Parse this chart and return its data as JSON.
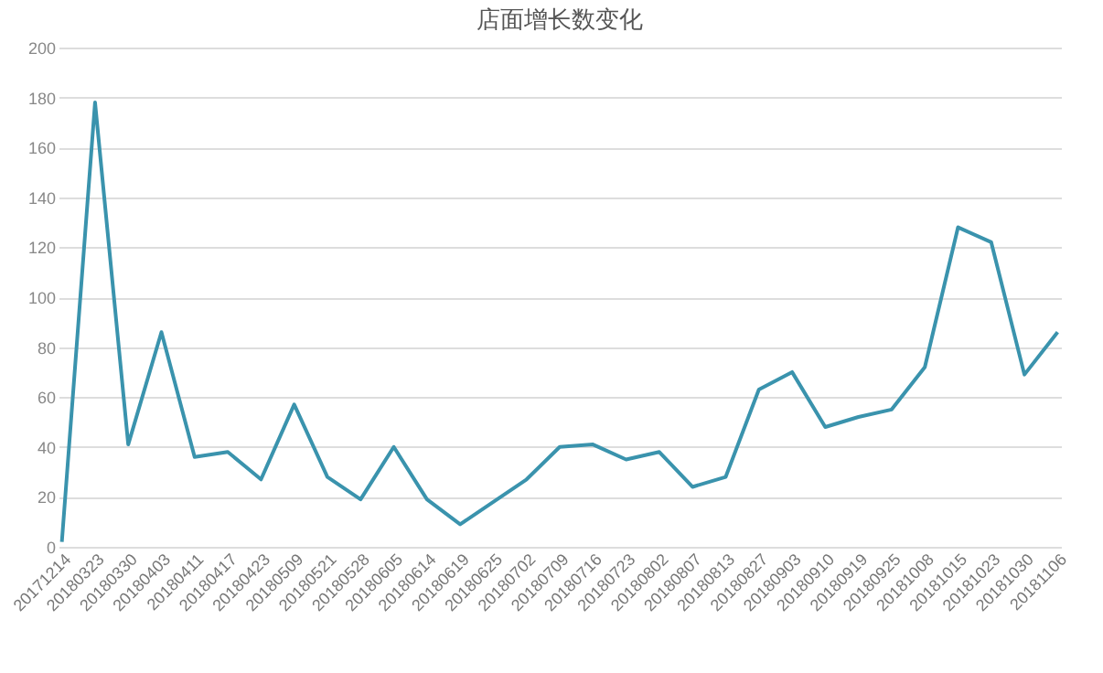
{
  "chart_data": {
    "type": "line",
    "title": "店面增长数变化",
    "categories": [
      "20171214",
      "20180323",
      "20180330",
      "20180403",
      "20180411",
      "20180417",
      "20180423",
      "20180509",
      "20180521",
      "20180528",
      "20180605",
      "20180614",
      "20180619",
      "20180625",
      "20180702",
      "20180709",
      "20180716",
      "20180723",
      "20180802",
      "20180807",
      "20180813",
      "20180827",
      "20180903",
      "20180910",
      "20180919",
      "20180925",
      "20181008",
      "20181015",
      "20181023",
      "20181030",
      "20181106"
    ],
    "series": [
      {
        "color": "#3a93ad",
        "values": [
          2,
          178,
          41,
          86,
          36,
          38,
          27,
          57,
          28,
          19,
          40,
          19,
          9,
          18,
          27,
          40,
          41,
          35,
          38,
          24,
          28,
          63,
          70,
          48,
          52,
          55,
          72,
          128,
          122,
          69,
          86
        ]
      }
    ],
    "ylim": [
      0,
      200
    ],
    "yticks": [
      0,
      20,
      40,
      60,
      80,
      100,
      120,
      140,
      160,
      180,
      200
    ],
    "grid": "y",
    "legend": false,
    "marker": "none",
    "line_style": "solid"
  }
}
